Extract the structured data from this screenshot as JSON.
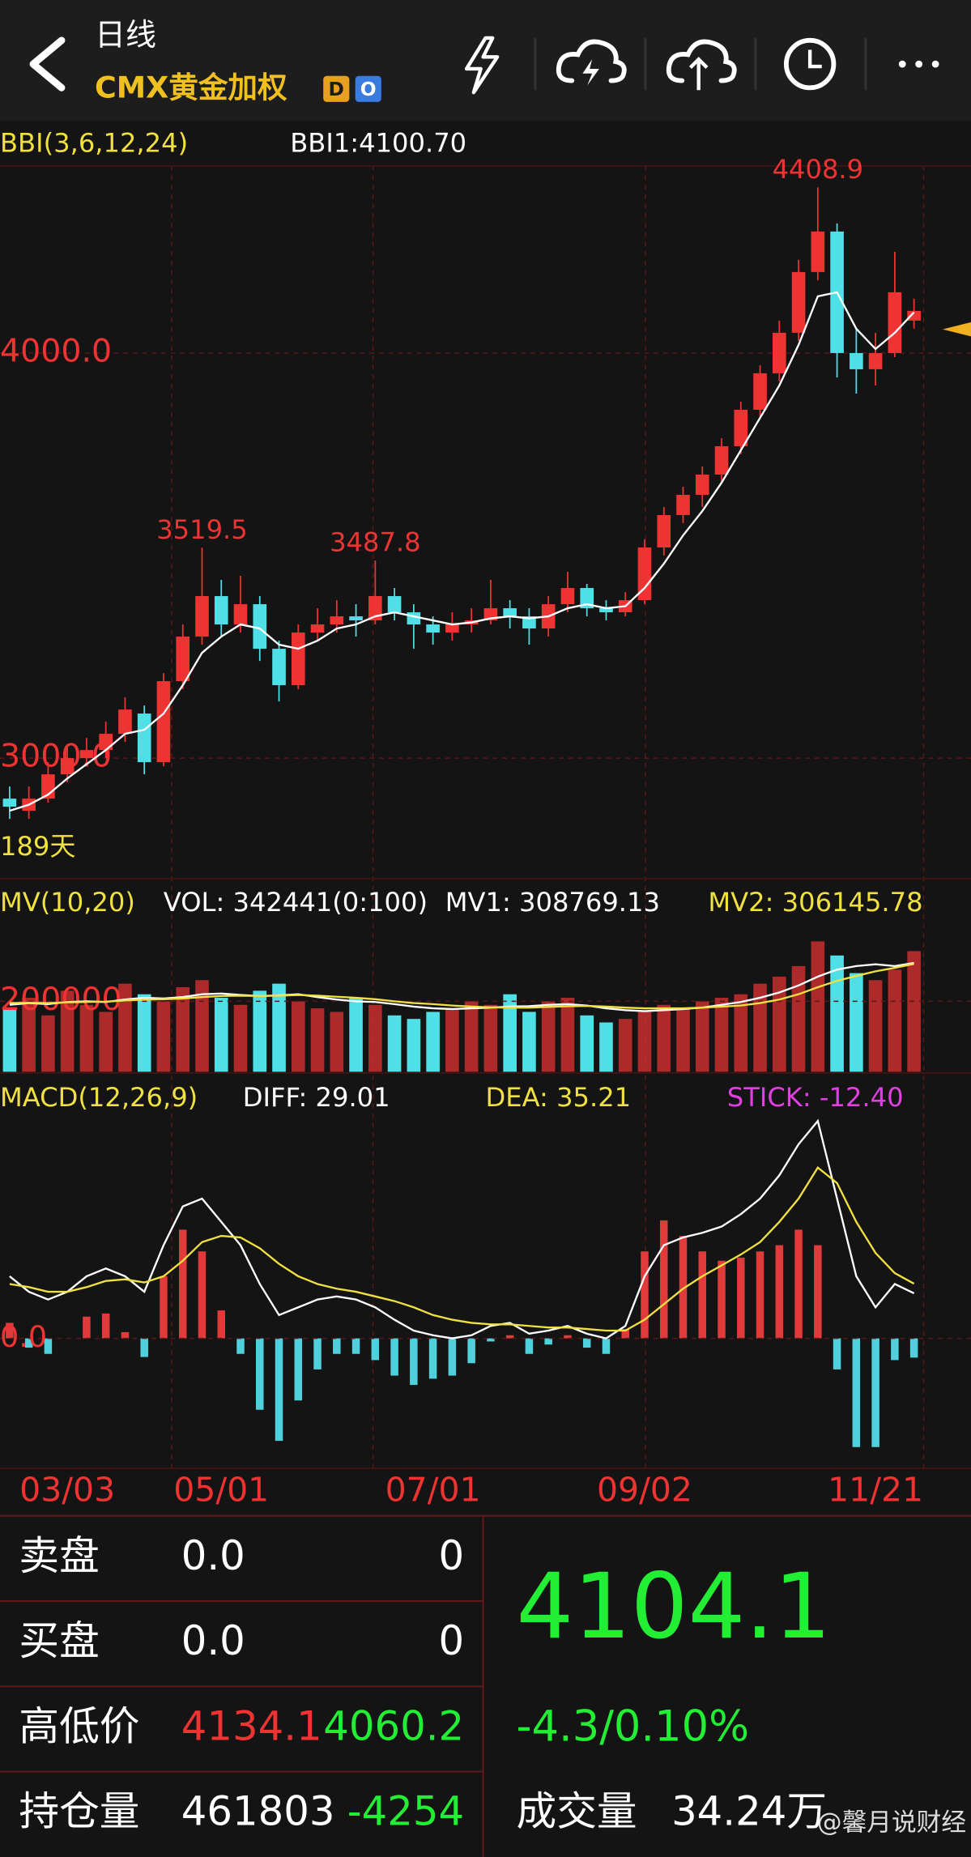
{
  "header": {
    "period": "日线",
    "symbol": "CMX黄金加权",
    "badges": [
      "D",
      "O"
    ]
  },
  "chart_data": [
    {
      "type": "candlestick",
      "title": "BBI(3,6,12,24)",
      "legend_text": "BBI1:4100.70",
      "period_label": "189天",
      "up_color": "#ee3333",
      "down_color": "#4fdfe6",
      "open": [
        2900,
        2870,
        2900,
        2960,
        3000,
        3020,
        3060,
        3110,
        2990,
        3190,
        3300,
        3400,
        3330,
        3380,
        3270,
        3180,
        3310,
        3330,
        3350,
        3340,
        3400,
        3360,
        3330,
        3310,
        3330,
        3340,
        3370,
        3350,
        3320,
        3380,
        3420,
        3370,
        3360,
        3390,
        3520,
        3600,
        3650,
        3700,
        3770,
        3860,
        3950,
        4050,
        4200,
        4300,
        4000,
        3960,
        4000,
        4080
      ],
      "high": [
        2930,
        2930,
        2990,
        3030,
        3050,
        3090,
        3150,
        3130,
        3210,
        3330,
        3519.5,
        3440,
        3450,
        3400,
        3290,
        3330,
        3370,
        3390,
        3380,
        3487.8,
        3420,
        3380,
        3350,
        3360,
        3370,
        3440,
        3390,
        3370,
        3400,
        3460,
        3430,
        3390,
        3410,
        3540,
        3620,
        3670,
        3720,
        3790,
        3880,
        3970,
        4080,
        4230,
        4408.9,
        4320,
        4060,
        4050,
        4250,
        4134.1
      ],
      "low": [
        2850,
        2850,
        2890,
        2940,
        2980,
        3000,
        3040,
        2960,
        2980,
        3170,
        3280,
        3300,
        3310,
        3240,
        3140,
        3170,
        3290,
        3310,
        3300,
        3330,
        3340,
        3270,
        3280,
        3290,
        3310,
        3330,
        3320,
        3280,
        3300,
        3360,
        3350,
        3340,
        3350,
        3380,
        3500,
        3580,
        3620,
        3680,
        3750,
        3840,
        3930,
        4030,
        4180,
        3940,
        3900,
        3920,
        3990,
        4060.2
      ],
      "close": [
        2880,
        2900,
        2960,
        3000,
        3020,
        3060,
        3120,
        2990,
        3190,
        3300,
        3400,
        3330,
        3380,
        3270,
        3180,
        3310,
        3330,
        3350,
        3340,
        3400,
        3360,
        3330,
        3310,
        3330,
        3340,
        3370,
        3350,
        3320,
        3380,
        3420,
        3370,
        3360,
        3390,
        3520,
        3600,
        3650,
        3700,
        3770,
        3860,
        3950,
        4050,
        4200,
        4300,
        4000,
        3960,
        4000,
        4150,
        4104.1
      ],
      "high_labels": [
        null,
        null,
        null,
        null,
        null,
        null,
        null,
        null,
        null,
        null,
        "3519.5",
        null,
        null,
        null,
        null,
        null,
        null,
        null,
        null,
        "3487.8",
        null,
        null,
        null,
        null,
        null,
        null,
        null,
        null,
        null,
        null,
        null,
        null,
        null,
        null,
        null,
        null,
        null,
        null,
        null,
        null,
        null,
        null,
        "4408.9",
        null,
        null,
        null,
        null,
        null
      ],
      "series": [
        {
          "color": "#ffffff",
          "values": [
            2870,
            2885,
            2910,
            2950,
            2985,
            3020,
            3060,
            3070,
            3110,
            3180,
            3260,
            3300,
            3330,
            3320,
            3280,
            3270,
            3290,
            3320,
            3330,
            3350,
            3360,
            3350,
            3340,
            3330,
            3335,
            3345,
            3350,
            3345,
            3350,
            3370,
            3380,
            3370,
            3375,
            3420,
            3480,
            3550,
            3610,
            3680,
            3760,
            3840,
            3920,
            4020,
            4140,
            4150,
            4060,
            4010,
            4050,
            4100.7
          ]
        }
      ],
      "ylim": [
        2708,
        4462
      ],
      "yticks": [
        {
          "value": 4000,
          "label": "4000.0"
        },
        {
          "value": 3000,
          "label": "3000.0"
        }
      ],
      "grid": true
    },
    {
      "type": "bar",
      "title": "MV(10,20)",
      "legend": [
        {
          "text": "VOL: 342441(0:100)",
          "color": "#ffffff"
        },
        {
          "text": "MV1: 308769.13",
          "color": "#ffffff"
        },
        {
          "text": "MV2: 306145.78",
          "color": "#f0e040"
        }
      ],
      "values": [
        180000,
        210000,
        160000,
        230000,
        190000,
        170000,
        250000,
        220000,
        200000,
        240000,
        260000,
        210000,
        190000,
        230000,
        250000,
        200000,
        180000,
        170000,
        210000,
        190000,
        160000,
        150000,
        170000,
        180000,
        200000,
        190000,
        220000,
        170000,
        200000,
        210000,
        160000,
        140000,
        150000,
        170000,
        190000,
        180000,
        200000,
        210000,
        220000,
        250000,
        270000,
        300000,
        370000,
        330000,
        280000,
        260000,
        290000,
        342441
      ],
      "series": [
        {
          "color": "#ffffff",
          "values": [
            190000,
            195000,
            192000,
            198000,
            200000,
            198000,
            205000,
            210000,
            208000,
            212000,
            220000,
            222000,
            218000,
            215000,
            217000,
            220000,
            212000,
            205000,
            200000,
            198000,
            192000,
            185000,
            180000,
            178000,
            180000,
            182000,
            185000,
            186000,
            190000,
            192000,
            188000,
            180000,
            175000,
            172000,
            175000,
            178000,
            182000,
            190000,
            198000,
            210000,
            225000,
            245000,
            270000,
            290000,
            300000,
            305000,
            300000,
            308769.13
          ]
        },
        {
          "color": "#f0e040",
          "values": [
            195000,
            196000,
            195000,
            197000,
            198000,
            199000,
            202000,
            205000,
            206000,
            208000,
            212000,
            215000,
            216000,
            215000,
            216000,
            218000,
            216000,
            213000,
            210000,
            206000,
            200000,
            195000,
            192000,
            188000,
            185000,
            183000,
            182000,
            182000,
            184000,
            186000,
            187000,
            185000,
            182000,
            180000,
            180000,
            180000,
            182000,
            185000,
            188000,
            195000,
            205000,
            220000,
            240000,
            258000,
            272000,
            285000,
            295000,
            306145.78
          ]
        }
      ],
      "ylim": [
        0,
        420000
      ],
      "yticks": [
        200000
      ]
    },
    {
      "type": "macd",
      "title": "MACD(12,26,9)",
      "legend": [
        {
          "text": "DIFF: 29.01",
          "color": "#ffffff"
        },
        {
          "text": "DEA: 35.21",
          "color": "#f0e040"
        },
        {
          "text": "STICK: -12.40",
          "color": "#e040e0"
        }
      ],
      "up_color": "#e03a3a",
      "down_color": "#4fd0dc",
      "categories": [
        null,
        null,
        null,
        "03/03",
        null,
        null,
        null,
        null,
        null,
        null,
        null,
        "05/01",
        null,
        null,
        null,
        null,
        null,
        null,
        null,
        null,
        null,
        null,
        "07/01",
        null,
        null,
        null,
        null,
        null,
        null,
        null,
        null,
        null,
        null,
        "09/02",
        null,
        null,
        null,
        null,
        null,
        null,
        null,
        null,
        null,
        null,
        null,
        "11/21",
        null,
        null
      ],
      "values": [
        10,
        -6,
        -10,
        0,
        14,
        16,
        4,
        -12,
        40,
        70,
        56,
        18,
        -10,
        -46,
        -66,
        -40,
        -20,
        -10,
        -10,
        -14,
        -24,
        -30,
        -26,
        -24,
        -16,
        -2,
        2,
        -10,
        -4,
        2,
        -6,
        -10,
        6,
        56,
        76,
        66,
        56,
        50,
        52,
        56,
        60,
        70,
        60,
        -20,
        -70,
        -70,
        -14,
        -12.4
      ],
      "series": [
        {
          "color": "#ffffff",
          "values": [
            40,
            30,
            25,
            30,
            40,
            45,
            40,
            30,
            60,
            85,
            90,
            75,
            60,
            35,
            15,
            20,
            25,
            27,
            25,
            20,
            12,
            5,
            2,
            0,
            2,
            8,
            10,
            3,
            5,
            8,
            3,
            0,
            8,
            40,
            60,
            65,
            68,
            72,
            80,
            90,
            105,
            125,
            140,
            90,
            40,
            20,
            35,
            29.01
          ]
        },
        {
          "color": "#f0e040",
          "values": [
            35,
            33,
            30,
            30,
            33,
            37,
            38,
            36,
            40,
            50,
            62,
            66,
            65,
            58,
            48,
            40,
            35,
            32,
            30,
            27,
            24,
            20,
            15,
            12,
            10,
            9,
            9,
            8,
            7,
            7,
            6,
            5,
            5,
            12,
            22,
            32,
            40,
            47,
            54,
            62,
            75,
            90,
            110,
            100,
            75,
            55,
            42,
            35.21
          ]
        }
      ],
      "ylim": [
        -80,
        145
      ],
      "yticks": [
        {
          "value": 0,
          "label": "0.0"
        }
      ]
    }
  ],
  "quote": {
    "rows": [
      {
        "label": "卖盘",
        "price": "0.0",
        "amount": "0"
      },
      {
        "label": "买盘",
        "price": "0.0",
        "amount": "0"
      },
      {
        "label": "高低价",
        "price": "4134.1",
        "amount": "4060.2"
      },
      {
        "label": "持仓量",
        "price": "461803",
        "amount": "-4254"
      }
    ],
    "last": "4104.1",
    "change": "-4.3/0.10%",
    "volume_label": "成交量",
    "volume": "34.24万",
    "watermark": "@馨月说财经"
  }
}
